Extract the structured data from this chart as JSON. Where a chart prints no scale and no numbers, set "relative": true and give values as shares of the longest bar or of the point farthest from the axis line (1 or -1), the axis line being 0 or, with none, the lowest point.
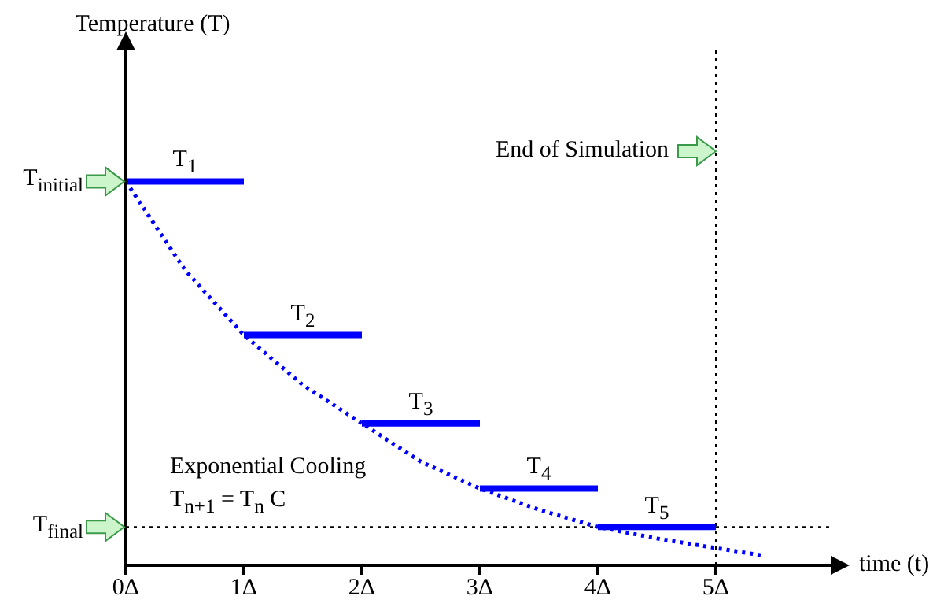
{
  "chart_data": {
    "type": "line",
    "relative": true,
    "xlabel": "time (t)",
    "xlim": [
      0,
      6
    ],
    "xticks": [
      {
        "value": 0,
        "label": "0Δ"
      },
      {
        "value": 1,
        "label": "1Δ"
      },
      {
        "value": 2,
        "label": "2Δ"
      },
      {
        "value": 3,
        "label": "3Δ"
      },
      {
        "value": 4,
        "label": "4Δ"
      },
      {
        "value": 5,
        "label": "5Δ"
      }
    ],
    "series": [
      {
        "name": "T$_{1}$",
        "color": "#0000ff",
        "x": [
          0,
          1
        ],
        "values": [
          1,
          1
        ],
        "line_style": "solid"
      },
      {
        "name": "T$_{2}$",
        "color": "#0000ff",
        "x": [
          1,
          2
        ],
        "values": [
          0.6,
          0.6
        ],
        "line_style": "solid"
      },
      {
        "name": "T$_{3}$",
        "color": "#0000ff",
        "x": [
          2,
          3
        ],
        "values": [
          0.37,
          0.37
        ],
        "line_style": "solid"
      },
      {
        "name": "T$_{4}$",
        "color": "#0000ff",
        "x": [
          3,
          4
        ],
        "values": [
          0.2,
          0.2
        ],
        "line_style": "solid"
      },
      {
        "name": "T$_{5}$",
        "color": "#0000ff",
        "x": [
          4,
          5
        ],
        "values": [
          0.1,
          0.1
        ],
        "line_style": "solid"
      },
      {
        "color": "#0000ff",
        "x": [
          0,
          0.5,
          1,
          1.5,
          2,
          2.5,
          3,
          3.5,
          4,
          4.5,
          5,
          5.41
        ],
        "values": [
          1,
          0.77,
          0.6,
          0.47,
          0.37,
          0.27,
          0.2,
          0.145,
          0.1,
          0.07,
          0.045,
          0.025
        ],
        "line_style": "dotted"
      }
    ],
    "ref_lines": [
      {
        "axis": "y",
        "value": 0.1,
        "label": "T$_{final}$",
        "color": "#000000",
        "line_style": "dotted"
      },
      {
        "axis": "x",
        "value": 5,
        "label": "End of Simulation",
        "color": "#000000",
        "line_style": "dotted"
      }
    ],
    "annotations": [
      "Temperature (T)",
      {
        "text": "T$_{initial}$",
        "x": 0,
        "y": 1
      },
      "Exponential Cooling",
      "T$_{n+1}$ = T$_{n}$ C"
    ],
    "legend": false,
    "grid": false,
    "marker": "none"
  }
}
